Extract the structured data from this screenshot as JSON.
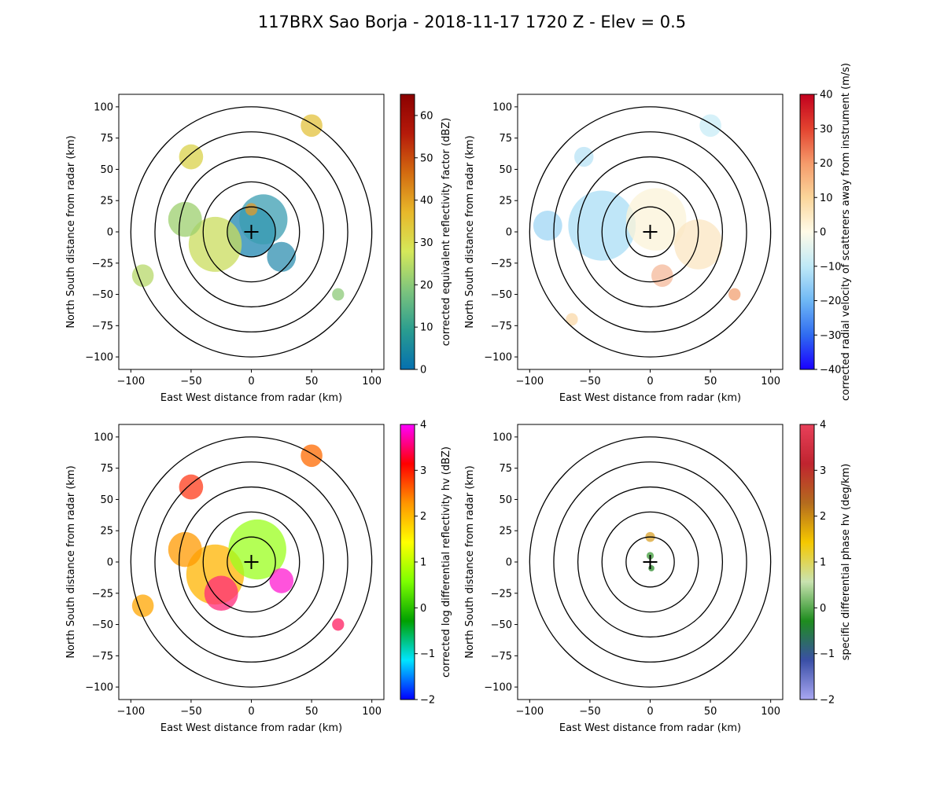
{
  "figure_title": "117BRX Sao Borja - 2018-11-17 1720 Z -  Elev = 0.5",
  "chart_data": [
    {
      "type": "heatmap",
      "subtype": "radar-ppi",
      "xlabel": "East West distance from radar (km)",
      "ylabel": "North South distance from radar (km)",
      "xlim": [
        -110,
        110
      ],
      "ylim": [
        -110,
        110
      ],
      "xticks": [
        "−100",
        "−50",
        "0",
        "50",
        "100"
      ],
      "yticks": [
        "−100",
        "−75",
        "−50",
        "−25",
        "0",
        "25",
        "50",
        "75",
        "100"
      ],
      "range_rings_km": [
        20,
        40,
        60,
        80,
        100
      ],
      "colorbar": {
        "label": "corrected equivalent reflectivity factor (dBZ)",
        "min": 0,
        "max": 65,
        "ticks": [
          "0",
          "10",
          "20",
          "30",
          "40",
          "50",
          "60"
        ],
        "tick_values": [
          0,
          10,
          20,
          30,
          40,
          50,
          60
        ],
        "colors": [
          "#0570b0",
          "#2a9d8f",
          "#7dc47d",
          "#d5e85a",
          "#e8b82a",
          "#d36b10",
          "#b51a0a",
          "#8b0000"
        ]
      },
      "echo_regions": [
        {
          "cx": 0,
          "cy": 0,
          "r": 20,
          "value": 15,
          "color": "#1e86b0"
        },
        {
          "cx": -30,
          "cy": -10,
          "r": 22,
          "value": 28,
          "color": "#c9dc5c"
        },
        {
          "cx": 10,
          "cy": 10,
          "r": 20,
          "value": 12,
          "color": "#3b9db2"
        },
        {
          "cx": -55,
          "cy": 10,
          "r": 14,
          "value": 25,
          "color": "#9ccf6d"
        },
        {
          "cx": -50,
          "cy": 60,
          "r": 10,
          "value": 35,
          "color": "#d9d24a"
        },
        {
          "cx": 50,
          "cy": 85,
          "r": 9,
          "value": 38,
          "color": "#e3c13c"
        },
        {
          "cx": -90,
          "cy": -35,
          "r": 9,
          "value": 22,
          "color": "#b7d86a"
        },
        {
          "cx": 25,
          "cy": -20,
          "r": 12,
          "value": 10,
          "color": "#2f8fb0"
        },
        {
          "cx": 72,
          "cy": -50,
          "r": 5,
          "value": 20,
          "color": "#8cca78"
        },
        {
          "cx": 0,
          "cy": 18,
          "r": 5,
          "value": 45,
          "color": "#e39b28"
        }
      ]
    },
    {
      "type": "heatmap",
      "subtype": "radar-ppi",
      "xlabel": "East West distance from radar (km)",
      "ylabel": "North South distance from radar (km)",
      "xlim": [
        -110,
        110
      ],
      "ylim": [
        -110,
        110
      ],
      "xticks": [
        "−100",
        "−50",
        "0",
        "50",
        "100"
      ],
      "yticks": [
        "−100",
        "−75",
        "−50",
        "−25",
        "0",
        "25",
        "50",
        "75",
        "100"
      ],
      "range_rings_km": [
        20,
        40,
        60,
        80,
        100
      ],
      "colorbar": {
        "label": "corrected radial velocity of scatterers away from instrument (m/s)",
        "min": -40,
        "max": 40,
        "ticks": [
          "−40",
          "−30",
          "−20",
          "−10",
          "0",
          "10",
          "20",
          "30",
          "40"
        ],
        "tick_values": [
          -40,
          -30,
          -20,
          -10,
          0,
          10,
          20,
          30,
          40
        ],
        "colors": [
          "#1a00ff",
          "#2f6bf0",
          "#6fb8f5",
          "#bfe9f7",
          "#fffbe8",
          "#fbd59a",
          "#f59a6a",
          "#e3432f",
          "#c2001e"
        ]
      },
      "echo_regions": [
        {
          "cx": -40,
          "cy": 5,
          "r": 28,
          "value": -10,
          "color": "#a9ddf5"
        },
        {
          "cx": 5,
          "cy": 10,
          "r": 25,
          "value": 2,
          "color": "#fbf3d8"
        },
        {
          "cx": 40,
          "cy": -10,
          "r": 20,
          "value": 5,
          "color": "#fbe6c2"
        },
        {
          "cx": -85,
          "cy": 5,
          "r": 12,
          "value": -12,
          "color": "#9fd6f4"
        },
        {
          "cx": 50,
          "cy": 85,
          "r": 9,
          "value": -6,
          "color": "#c8ecf7"
        },
        {
          "cx": 10,
          "cy": -35,
          "r": 9,
          "value": 15,
          "color": "#f4b89a"
        },
        {
          "cx": -55,
          "cy": 60,
          "r": 8,
          "value": -8,
          "color": "#b8e3f6"
        },
        {
          "cx": 70,
          "cy": -50,
          "r": 5,
          "value": 14,
          "color": "#f2a071"
        },
        {
          "cx": -65,
          "cy": -70,
          "r": 5,
          "value": 8,
          "color": "#f9d8a8"
        }
      ]
    },
    {
      "type": "heatmap",
      "subtype": "radar-ppi",
      "xlabel": "East West distance from radar (km)",
      "ylabel": "North South distance from radar (km)",
      "xlim": [
        -110,
        110
      ],
      "ylim": [
        -110,
        110
      ],
      "xticks": [
        "−100",
        "−50",
        "0",
        "50",
        "100"
      ],
      "yticks": [
        "−100",
        "−75",
        "−50",
        "−25",
        "0",
        "25",
        "50",
        "75",
        "100"
      ],
      "range_rings_km": [
        20,
        40,
        60,
        80,
        100
      ],
      "colorbar": {
        "label": "corrected log differential reflectivity hv (dBZ)",
        "min": -2,
        "max": 4,
        "ticks": [
          "−2",
          "−1",
          "0",
          "1",
          "2",
          "3",
          "4"
        ],
        "tick_values": [
          -2,
          -1,
          0,
          1,
          2,
          3,
          4
        ],
        "colors": [
          "#0000ff",
          "#00e5ff",
          "#00a000",
          "#7dff00",
          "#ffff00",
          "#ff9500",
          "#ff0000",
          "#ff00ff"
        ]
      },
      "echo_regions": [
        {
          "cx": -30,
          "cy": -10,
          "r": 24,
          "value": 2.2,
          "color": "#ffb400"
        },
        {
          "cx": -25,
          "cy": -25,
          "r": 14,
          "value": 3.6,
          "color": "#ff2a7a"
        },
        {
          "cx": 5,
          "cy": 10,
          "r": 24,
          "value": 1.0,
          "color": "#9bff1e"
        },
        {
          "cx": -55,
          "cy": 10,
          "r": 14,
          "value": 2.5,
          "color": "#ff9a00"
        },
        {
          "cx": -50,
          "cy": 60,
          "r": 10,
          "value": 3.3,
          "color": "#ff3b1a"
        },
        {
          "cx": 50,
          "cy": 85,
          "r": 9,
          "value": 2.8,
          "color": "#ff6a00"
        },
        {
          "cx": -90,
          "cy": -35,
          "r": 9,
          "value": 2.4,
          "color": "#ffa600"
        },
        {
          "cx": 25,
          "cy": -15,
          "r": 10,
          "value": 3.8,
          "color": "#ff1ad0"
        },
        {
          "cx": 72,
          "cy": -50,
          "r": 5,
          "value": 3.5,
          "color": "#ff1e60"
        }
      ]
    },
    {
      "type": "heatmap",
      "subtype": "radar-ppi",
      "xlabel": "East West distance from radar (km)",
      "ylabel": "North South distance from radar (km)",
      "xlim": [
        -110,
        110
      ],
      "ylim": [
        -110,
        110
      ],
      "xticks": [
        "−100",
        "−50",
        "0",
        "50",
        "100"
      ],
      "yticks": [
        "−100",
        "−75",
        "−50",
        "−25",
        "0",
        "25",
        "50",
        "75",
        "100"
      ],
      "range_rings_km": [
        20,
        40,
        60,
        80,
        100
      ],
      "colorbar": {
        "label": "specific differential phase hv (deg/km)",
        "min": -2,
        "max": 4,
        "ticks": [
          "−2",
          "−1",
          "0",
          "1",
          "2",
          "3",
          "4"
        ],
        "tick_values": [
          -2,
          -1,
          0,
          1,
          2,
          3,
          4
        ],
        "colors": [
          "#a9a7f2",
          "#3a4fa6",
          "#1e8c1e",
          "#c9e3b0",
          "#f5c800",
          "#b46b1e",
          "#c0242f",
          "#e8405a"
        ]
      },
      "echo_regions": [
        {
          "cx": 0,
          "cy": 20,
          "r": 4,
          "value": 2.0,
          "color": "#d9a22a"
        },
        {
          "cx": 0,
          "cy": 5,
          "r": 3,
          "value": 0.3,
          "color": "#3f9c3a"
        },
        {
          "cx": 1,
          "cy": -5,
          "r": 2.5,
          "value": 0.0,
          "color": "#2a8a2a"
        }
      ]
    }
  ]
}
